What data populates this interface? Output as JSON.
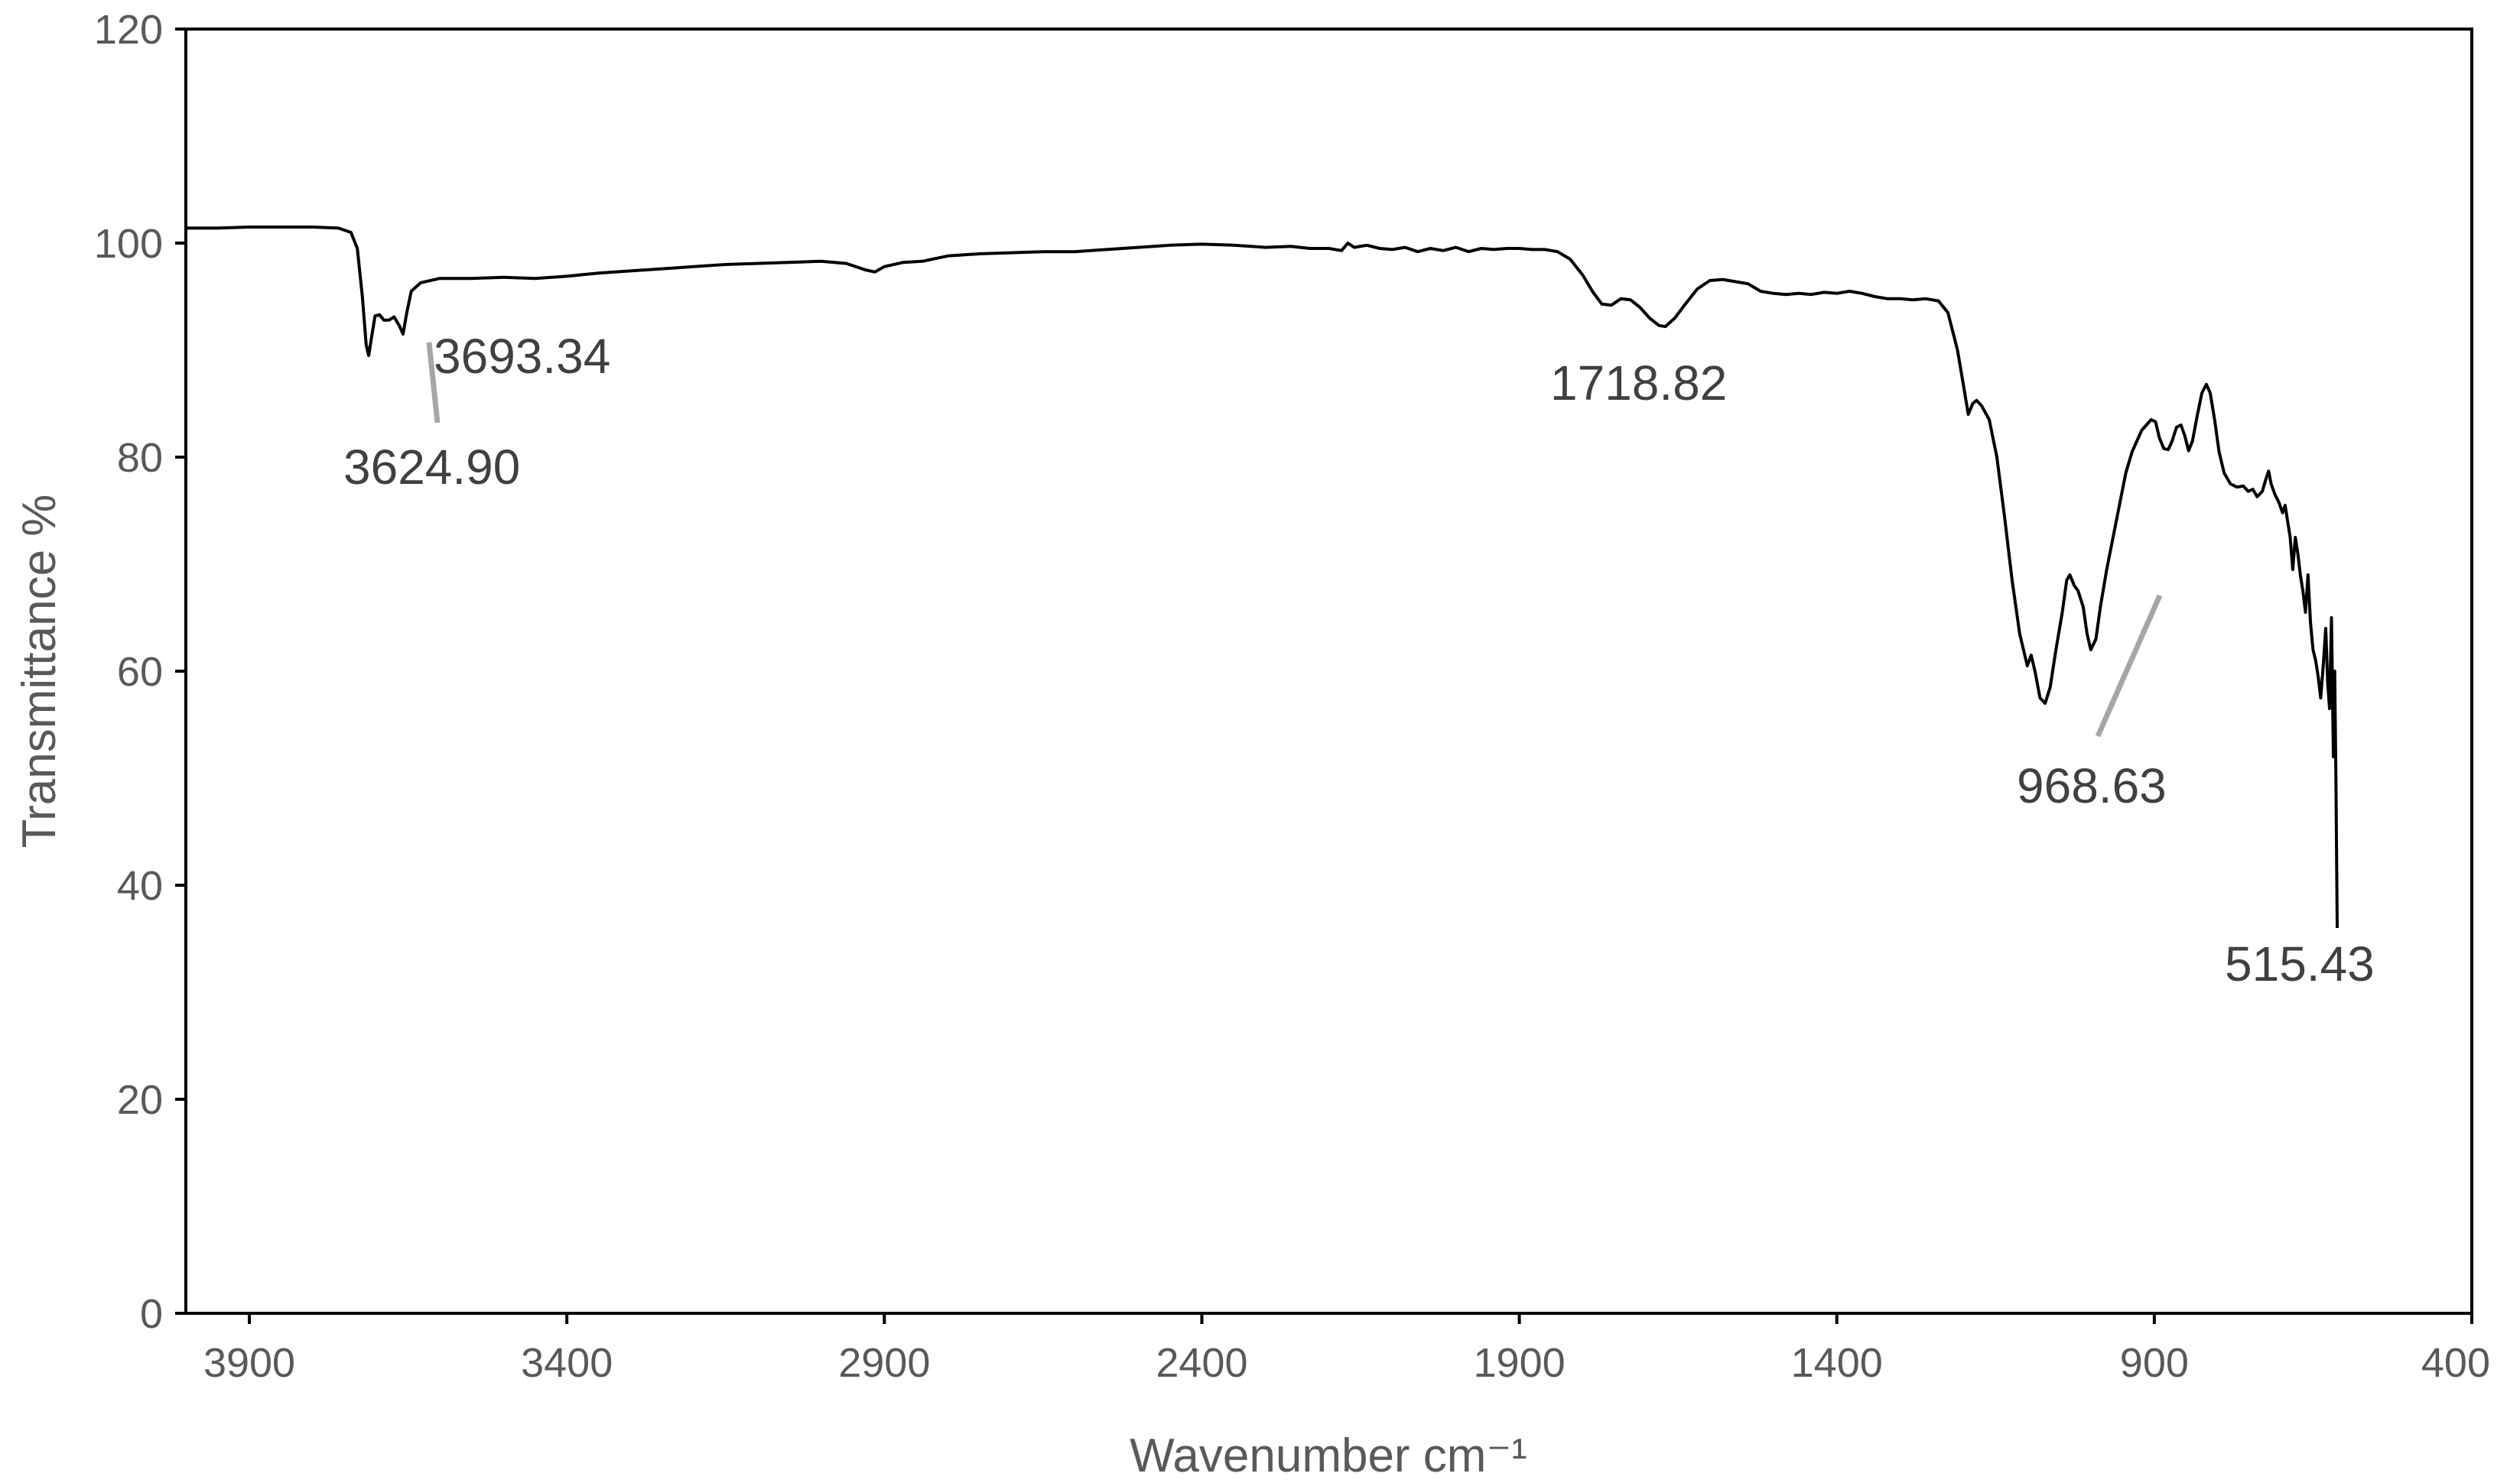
{
  "chart_data": {
    "type": "line",
    "title": "",
    "xlabel": "Wavenumber cm⁻¹",
    "ylabel": "Transmittance %",
    "xlim": [
      4000,
      400
    ],
    "ylim": [
      0,
      120
    ],
    "x_reversed": true,
    "x_ticks": [
      3900,
      3400,
      2900,
      2400,
      1900,
      1400,
      900,
      400
    ],
    "y_ticks": [
      0,
      20,
      40,
      60,
      80,
      100,
      120
    ],
    "grid": false,
    "legend": "none",
    "series": [
      {
        "color": "#000000",
        "points": [
          [
            4000,
            101.4
          ],
          [
            3950,
            101.4
          ],
          [
            3900,
            101.5
          ],
          [
            3850,
            101.5
          ],
          [
            3800,
            101.5
          ],
          [
            3760,
            101.4
          ],
          [
            3740,
            101.0
          ],
          [
            3730,
            99.5
          ],
          [
            3722,
            95
          ],
          [
            3716,
            90.5
          ],
          [
            3712,
            89.5
          ],
          [
            3708,
            91
          ],
          [
            3702,
            93.2
          ],
          [
            3695,
            93.3
          ],
          [
            3688,
            92.8
          ],
          [
            3680,
            92.8
          ],
          [
            3672,
            93.1
          ],
          [
            3664,
            92.3
          ],
          [
            3658,
            91.5
          ],
          [
            3652,
            93.5
          ],
          [
            3645,
            95.5
          ],
          [
            3630,
            96.3
          ],
          [
            3600,
            96.7
          ],
          [
            3550,
            96.7
          ],
          [
            3500,
            96.8
          ],
          [
            3450,
            96.7
          ],
          [
            3400,
            96.9
          ],
          [
            3350,
            97.2
          ],
          [
            3300,
            97.4
          ],
          [
            3250,
            97.6
          ],
          [
            3200,
            97.8
          ],
          [
            3150,
            98.0
          ],
          [
            3100,
            98.1
          ],
          [
            3050,
            98.2
          ],
          [
            3000,
            98.3
          ],
          [
            2960,
            98.1
          ],
          [
            2930,
            97.5
          ],
          [
            2915,
            97.3
          ],
          [
            2900,
            97.8
          ],
          [
            2870,
            98.2
          ],
          [
            2840,
            98.3
          ],
          [
            2800,
            98.8
          ],
          [
            2750,
            99.0
          ],
          [
            2700,
            99.1
          ],
          [
            2650,
            99.2
          ],
          [
            2600,
            99.2
          ],
          [
            2550,
            99.4
          ],
          [
            2500,
            99.6
          ],
          [
            2450,
            99.8
          ],
          [
            2400,
            99.9
          ],
          [
            2350,
            99.8
          ],
          [
            2300,
            99.6
          ],
          [
            2260,
            99.7
          ],
          [
            2230,
            99.5
          ],
          [
            2200,
            99.5
          ],
          [
            2180,
            99.3
          ],
          [
            2170,
            100.0
          ],
          [
            2160,
            99.6
          ],
          [
            2140,
            99.8
          ],
          [
            2120,
            99.5
          ],
          [
            2100,
            99.4
          ],
          [
            2080,
            99.6
          ],
          [
            2060,
            99.2
          ],
          [
            2040,
            99.5
          ],
          [
            2020,
            99.3
          ],
          [
            2000,
            99.6
          ],
          [
            1980,
            99.2
          ],
          [
            1960,
            99.5
          ],
          [
            1940,
            99.4
          ],
          [
            1920,
            99.5
          ],
          [
            1900,
            99.5
          ],
          [
            1880,
            99.4
          ],
          [
            1860,
            99.4
          ],
          [
            1840,
            99.2
          ],
          [
            1820,
            98.5
          ],
          [
            1800,
            97.0
          ],
          [
            1785,
            95.5
          ],
          [
            1770,
            94.3
          ],
          [
            1755,
            94.2
          ],
          [
            1740,
            94.8
          ],
          [
            1725,
            94.7
          ],
          [
            1710,
            94.0
          ],
          [
            1695,
            93.0
          ],
          [
            1680,
            92.3
          ],
          [
            1670,
            92.2
          ],
          [
            1655,
            93.0
          ],
          [
            1640,
            94.2
          ],
          [
            1620,
            95.7
          ],
          [
            1600,
            96.5
          ],
          [
            1580,
            96.6
          ],
          [
            1560,
            96.4
          ],
          [
            1540,
            96.2
          ],
          [
            1520,
            95.5
          ],
          [
            1500,
            95.3
          ],
          [
            1480,
            95.2
          ],
          [
            1460,
            95.3
          ],
          [
            1440,
            95.2
          ],
          [
            1420,
            95.4
          ],
          [
            1400,
            95.3
          ],
          [
            1380,
            95.5
          ],
          [
            1360,
            95.3
          ],
          [
            1340,
            95.0
          ],
          [
            1320,
            94.8
          ],
          [
            1300,
            94.8
          ],
          [
            1280,
            94.7
          ],
          [
            1260,
            94.8
          ],
          [
            1240,
            94.6
          ],
          [
            1225,
            93.5
          ],
          [
            1210,
            90.0
          ],
          [
            1200,
            86.5
          ],
          [
            1193,
            84.0
          ],
          [
            1186,
            85.0
          ],
          [
            1180,
            85.3
          ],
          [
            1172,
            84.8
          ],
          [
            1160,
            83.5
          ],
          [
            1148,
            80.0
          ],
          [
            1136,
            74.5
          ],
          [
            1124,
            68.5
          ],
          [
            1112,
            63.5
          ],
          [
            1100,
            60.5
          ],
          [
            1094,
            61.5
          ],
          [
            1088,
            60.0
          ],
          [
            1080,
            57.5
          ],
          [
            1072,
            57.0
          ],
          [
            1064,
            58.5
          ],
          [
            1055,
            62.0
          ],
          [
            1045,
            65.5
          ],
          [
            1038,
            68.5
          ],
          [
            1033,
            69.0
          ],
          [
            1026,
            68.0
          ],
          [
            1020,
            67.5
          ],
          [
            1012,
            66.0
          ],
          [
            1006,
            63.5
          ],
          [
            1000,
            62.0
          ],
          [
            992,
            63.0
          ],
          [
            985,
            66.0
          ],
          [
            975,
            69.5
          ],
          [
            965,
            72.5
          ],
          [
            955,
            75.5
          ],
          [
            945,
            78.5
          ],
          [
            935,
            80.5
          ],
          [
            920,
            82.5
          ],
          [
            905,
            83.5
          ],
          [
            898,
            83.3
          ],
          [
            892,
            81.8
          ],
          [
            885,
            80.8
          ],
          [
            878,
            80.7
          ],
          [
            872,
            81.5
          ],
          [
            865,
            82.8
          ],
          [
            858,
            83.0
          ],
          [
            852,
            82.0
          ],
          [
            846,
            80.6
          ],
          [
            840,
            81.5
          ],
          [
            832,
            84.0
          ],
          [
            825,
            86.0
          ],
          [
            818,
            86.8
          ],
          [
            812,
            86.0
          ],
          [
            805,
            83.5
          ],
          [
            798,
            80.5
          ],
          [
            790,
            78.5
          ],
          [
            780,
            77.5
          ],
          [
            770,
            77.2
          ],
          [
            760,
            77.3
          ],
          [
            752,
            76.8
          ],
          [
            745,
            77.0
          ],
          [
            738,
            76.3
          ],
          [
            730,
            76.8
          ],
          [
            724,
            78.0
          ],
          [
            720,
            78.7
          ],
          [
            716,
            77.5
          ],
          [
            710,
            76.5
          ],
          [
            704,
            75.8
          ],
          [
            698,
            74.8
          ],
          [
            694,
            75.5
          ],
          [
            690,
            74.0
          ],
          [
            686,
            72.5
          ],
          [
            682,
            69.5
          ],
          [
            678,
            72.5
          ],
          [
            674,
            71.0
          ],
          [
            670,
            69.0
          ],
          [
            666,
            67.5
          ],
          [
            662,
            65.5
          ],
          [
            658,
            69.0
          ],
          [
            654,
            64.5
          ],
          [
            650,
            62.0
          ],
          [
            646,
            61.0
          ],
          [
            642,
            59.5
          ],
          [
            638,
            57.5
          ],
          [
            634,
            60.5
          ],
          [
            630,
            64.0
          ],
          [
            627,
            59.0
          ],
          [
            624,
            56.5
          ],
          [
            621,
            65.0
          ],
          [
            618,
            52.0
          ],
          [
            616,
            60.0
          ],
          [
            614,
            50.0
          ],
          [
            612,
            36.0
          ]
        ]
      }
    ],
    "annotations": [
      {
        "label": "3693.34",
        "x": 3652,
        "y": 91.5
      },
      {
        "label": "3624.90",
        "x": 3635,
        "y": 83.3
      },
      {
        "label": "1718.82",
        "x": 1670,
        "y": 92.2
      },
      {
        "label": "968.63",
        "x": 1005,
        "y": 67.5
      },
      {
        "label": "515.43",
        "x": 612,
        "y": 36.0
      }
    ]
  }
}
